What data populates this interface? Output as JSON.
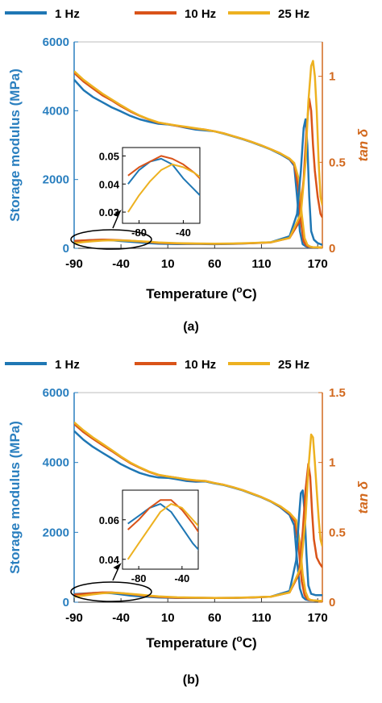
{
  "chart_data": [
    {
      "type": "line",
      "label": "(a)",
      "xlabel": "Temperature (",
      "xlabel_sup": "o",
      "xlabel_end": "C)",
      "ylabel_left": "Storage modulus (MPa)",
      "ylabel_right": "tan δ",
      "xlim": [
        -90,
        175
      ],
      "ylim_left": [
        0,
        6000
      ],
      "ylim_right": [
        0,
        1.2
      ],
      "xticks": [
        -90,
        -40,
        10,
        60,
        110,
        170
      ],
      "yticks_left": [
        0,
        2000,
        4000,
        6000
      ],
      "yticks_right": [
        0,
        0.5,
        1
      ],
      "legend": [
        "1 Hz",
        "10 Hz",
        "25 Hz"
      ],
      "colors": [
        "#1f77b4",
        "#d95319",
        "#edb120"
      ],
      "storage_modulus": [
        {
          "name": "1 Hz",
          "x": [
            -90,
            -80,
            -70,
            -60,
            -50,
            -40,
            -30,
            -20,
            -10,
            0,
            10,
            20,
            30,
            40,
            50,
            60,
            70,
            80,
            90,
            100,
            110,
            120,
            130,
            140,
            145,
            148,
            151,
            154,
            157,
            160,
            165,
            170,
            175
          ],
          "y": [
            4900,
            4600,
            4400,
            4250,
            4100,
            3980,
            3850,
            3750,
            3680,
            3620,
            3600,
            3560,
            3500,
            3450,
            3430,
            3400,
            3330,
            3250,
            3170,
            3080,
            2980,
            2870,
            2740,
            2580,
            2400,
            1500,
            500,
            120,
            60,
            30,
            30,
            30,
            30
          ]
        },
        {
          "name": "10 Hz",
          "x": [
            -90,
            -80,
            -70,
            -60,
            -50,
            -40,
            -30,
            -20,
            -10,
            0,
            10,
            20,
            30,
            40,
            50,
            60,
            70,
            80,
            90,
            100,
            110,
            120,
            130,
            140,
            145,
            149,
            152,
            155,
            158,
            161,
            165,
            170,
            175
          ],
          "y": [
            5100,
            4850,
            4650,
            4450,
            4300,
            4130,
            3980,
            3850,
            3740,
            3650,
            3610,
            3560,
            3520,
            3480,
            3450,
            3400,
            3340,
            3260,
            3180,
            3090,
            2990,
            2880,
            2760,
            2600,
            2450,
            1800,
            800,
            200,
            80,
            40,
            30,
            30,
            30
          ]
        },
        {
          "name": "25 Hz",
          "x": [
            -90,
            -80,
            -70,
            -60,
            -50,
            -40,
            -30,
            -20,
            -10,
            0,
            10,
            20,
            30,
            40,
            50,
            60,
            70,
            80,
            90,
            100,
            110,
            120,
            130,
            140,
            145,
            150,
            153,
            156,
            159,
            162,
            165,
            170,
            175
          ],
          "y": [
            5150,
            4900,
            4700,
            4500,
            4330,
            4160,
            4000,
            3860,
            3750,
            3660,
            3610,
            3570,
            3530,
            3490,
            3450,
            3400,
            3340,
            3260,
            3180,
            3090,
            2990,
            2880,
            2760,
            2610,
            2480,
            2000,
            1000,
            300,
            100,
            50,
            30,
            30,
            30
          ]
        }
      ],
      "tan_delta": [
        {
          "name": "1 Hz",
          "x": [
            -90,
            -80,
            -70,
            -60,
            -50,
            -40,
            -30,
            -20,
            -10,
            0,
            20,
            40,
            60,
            80,
            100,
            120,
            140,
            148,
            152,
            155,
            157,
            159,
            161,
            163,
            166,
            170,
            175
          ],
          "y": [
            0.04,
            0.045,
            0.048,
            0.049,
            0.047,
            0.042,
            0.038,
            0.034,
            0.03,
            0.027,
            0.025,
            0.026,
            0.024,
            0.026,
            0.03,
            0.035,
            0.07,
            0.2,
            0.45,
            0.7,
            0.75,
            0.6,
            0.3,
            0.1,
            0.05,
            0.03,
            0.02
          ]
        },
        {
          "name": "10 Hz",
          "x": [
            -90,
            -80,
            -70,
            -60,
            -50,
            -40,
            -30,
            -20,
            -10,
            0,
            20,
            40,
            60,
            80,
            100,
            120,
            140,
            150,
            155,
            158,
            161,
            163,
            165,
            167,
            170,
            173,
            175
          ],
          "y": [
            0.043,
            0.046,
            0.048,
            0.05,
            0.049,
            0.047,
            0.044,
            0.04,
            0.036,
            0.032,
            0.028,
            0.027,
            0.026,
            0.027,
            0.03,
            0.034,
            0.06,
            0.15,
            0.4,
            0.68,
            0.87,
            0.8,
            0.6,
            0.45,
            0.3,
            0.2,
            0.18
          ]
        },
        {
          "name": "25 Hz",
          "x": [
            -90,
            -80,
            -70,
            -60,
            -50,
            -40,
            -30,
            -20,
            -10,
            0,
            20,
            40,
            60,
            80,
            100,
            120,
            140,
            152,
            157,
            160,
            163,
            165,
            167,
            169,
            171,
            173,
            175
          ],
          "y": [
            0.03,
            0.036,
            0.041,
            0.045,
            0.047,
            0.046,
            0.044,
            0.041,
            0.038,
            0.034,
            0.03,
            0.028,
            0.027,
            0.028,
            0.031,
            0.035,
            0.06,
            0.2,
            0.5,
            0.85,
            1.06,
            1.09,
            1.0,
            0.8,
            0.5,
            0.3,
            0.25
          ]
        }
      ],
      "inset": {
        "xticks": [
          -80,
          -40
        ],
        "yticks": [
          0.03,
          0.04,
          0.05
        ],
        "xlim": [
          -95,
          -25
        ],
        "ylim": [
          0.026,
          0.053
        ]
      }
    },
    {
      "type": "line",
      "label": "(b)",
      "xlabel": "Temperature (",
      "xlabel_sup": "o",
      "xlabel_end": "C)",
      "ylabel_left": "Storage modulus (MPa)",
      "ylabel_right": "tan δ",
      "xlim": [
        -90,
        175
      ],
      "ylim_left": [
        0,
        6000
      ],
      "ylim_right": [
        0,
        1.5
      ],
      "xticks": [
        -90,
        -40,
        10,
        60,
        110,
        170
      ],
      "yticks_left": [
        0,
        2000,
        4000,
        6000
      ],
      "yticks_right": [
        0,
        0.5,
        1,
        1.5
      ],
      "legend": [
        "1 Hz",
        "10 Hz",
        "25 Hz"
      ],
      "colors": [
        "#1f77b4",
        "#d95319",
        "#edb120"
      ],
      "storage_modulus": [
        {
          "name": "1 Hz",
          "x": [
            -90,
            -80,
            -70,
            -60,
            -50,
            -40,
            -30,
            -20,
            -10,
            0,
            10,
            20,
            30,
            40,
            50,
            60,
            70,
            80,
            90,
            100,
            110,
            120,
            130,
            140,
            145,
            148,
            151,
            154,
            157,
            160,
            165,
            170,
            175
          ],
          "y": [
            4900,
            4650,
            4450,
            4280,
            4120,
            3950,
            3820,
            3700,
            3620,
            3570,
            3560,
            3520,
            3470,
            3450,
            3460,
            3400,
            3350,
            3280,
            3200,
            3100,
            3000,
            2880,
            2720,
            2500,
            2200,
            1200,
            400,
            150,
            80,
            60,
            50,
            40,
            40
          ]
        },
        {
          "name": "10 Hz",
          "x": [
            -90,
            -80,
            -70,
            -60,
            -50,
            -40,
            -30,
            -20,
            -10,
            0,
            10,
            20,
            30,
            40,
            50,
            60,
            70,
            80,
            90,
            100,
            110,
            120,
            130,
            140,
            146,
            150,
            153,
            156,
            159,
            162,
            165,
            170,
            175
          ],
          "y": [
            5100,
            4870,
            4680,
            4500,
            4330,
            4150,
            3980,
            3850,
            3730,
            3640,
            3600,
            3560,
            3510,
            3480,
            3470,
            3410,
            3360,
            3290,
            3210,
            3110,
            3010,
            2890,
            2740,
            2540,
            2300,
            1500,
            600,
            200,
            90,
            60,
            50,
            40,
            40
          ]
        },
        {
          "name": "25 Hz",
          "x": [
            -90,
            -80,
            -70,
            -60,
            -50,
            -40,
            -30,
            -20,
            -10,
            0,
            10,
            20,
            30,
            40,
            50,
            60,
            70,
            80,
            90,
            100,
            110,
            120,
            130,
            140,
            147,
            151,
            154,
            157,
            160,
            163,
            166,
            170,
            175
          ],
          "y": [
            5150,
            4920,
            4720,
            4540,
            4360,
            4170,
            4000,
            3860,
            3740,
            3650,
            3600,
            3560,
            3520,
            3490,
            3470,
            3410,
            3360,
            3290,
            3210,
            3110,
            3010,
            2890,
            2750,
            2560,
            2350,
            1700,
            800,
            300,
            100,
            60,
            50,
            40,
            40
          ]
        }
      ],
      "tan_delta": [
        {
          "name": "1 Hz",
          "x": [
            -90,
            -80,
            -70,
            -60,
            -50,
            -40,
            -30,
            -20,
            -10,
            0,
            20,
            40,
            60,
            80,
            100,
            120,
            140,
            147,
            150,
            152,
            154,
            156,
            158,
            160,
            163,
            168,
            175
          ],
          "y": [
            0.058,
            0.062,
            0.066,
            0.068,
            0.064,
            0.056,
            0.048,
            0.042,
            0.038,
            0.034,
            0.03,
            0.032,
            0.03,
            0.031,
            0.034,
            0.04,
            0.08,
            0.3,
            0.6,
            0.78,
            0.8,
            0.65,
            0.35,
            0.12,
            0.06,
            0.05,
            0.05
          ]
        },
        {
          "name": "10 Hz",
          "x": [
            -90,
            -80,
            -70,
            -60,
            -50,
            -40,
            -30,
            -20,
            -10,
            0,
            20,
            40,
            60,
            80,
            100,
            120,
            140,
            150,
            154,
            157,
            160,
            162,
            164,
            166,
            169,
            172,
            175
          ],
          "y": [
            0.055,
            0.06,
            0.066,
            0.07,
            0.07,
            0.065,
            0.058,
            0.05,
            0.044,
            0.038,
            0.032,
            0.032,
            0.03,
            0.031,
            0.034,
            0.04,
            0.07,
            0.2,
            0.5,
            0.8,
            0.99,
            0.9,
            0.65,
            0.45,
            0.32,
            0.28,
            0.25
          ]
        },
        {
          "name": "25 Hz",
          "x": [
            -90,
            -80,
            -70,
            -60,
            -50,
            -40,
            -30,
            -20,
            -10,
            0,
            20,
            40,
            60,
            80,
            100,
            120,
            140,
            152,
            157,
            160,
            163,
            165,
            167,
            169,
            171,
            173,
            175
          ],
          "y": [
            0.04,
            0.048,
            0.056,
            0.064,
            0.068,
            0.066,
            0.06,
            0.054,
            0.048,
            0.042,
            0.035,
            0.033,
            0.031,
            0.032,
            0.035,
            0.04,
            0.07,
            0.25,
            0.6,
            0.95,
            1.2,
            1.18,
            1.0,
            0.8,
            0.6,
            0.45,
            0.4
          ]
        }
      ],
      "inset": {
        "xticks": [
          -80,
          -40
        ],
        "yticks": [
          0.04,
          0.06
        ],
        "xlim": [
          -95,
          -25
        ],
        "ylim": [
          0.035,
          0.075
        ]
      }
    }
  ]
}
